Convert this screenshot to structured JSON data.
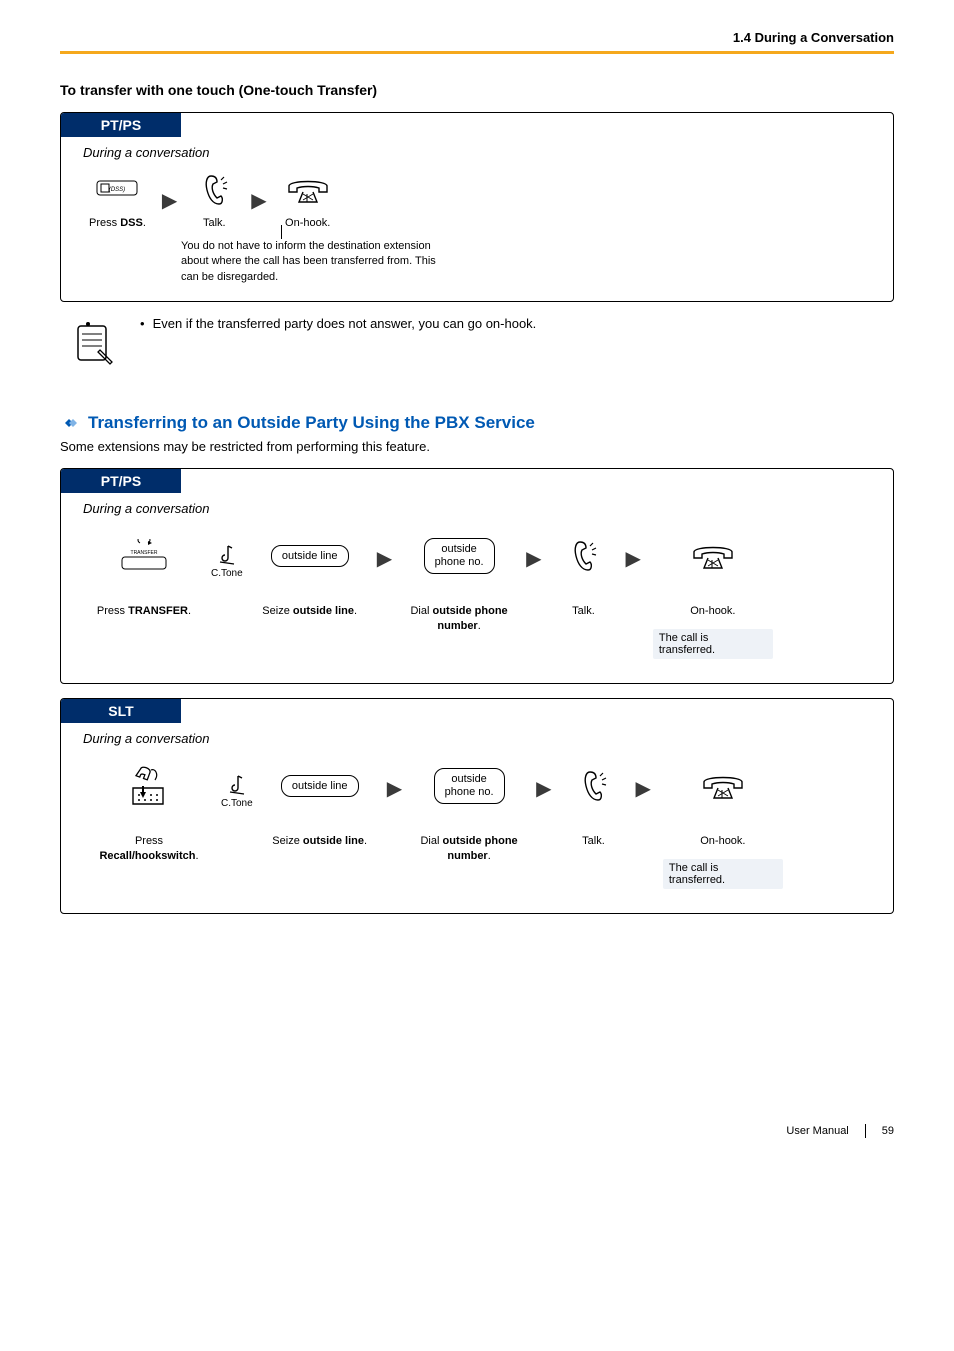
{
  "header": {
    "section": "1.4 During a Conversation"
  },
  "onetouch": {
    "heading": "To transfer with one touch (One-touch Transfer)",
    "panel_label": "PT/PS",
    "context": "During a conversation",
    "step1": "Press <b>DSS</b>.",
    "dss_key": "(DSS)",
    "step2": "Talk.",
    "step3": "On-hook.",
    "callout": "You do not have to inform the destination extension about where the call has been transferred from. This can be disregarded."
  },
  "note": {
    "text": "Even if the transferred party does not answer, you can go on-hook."
  },
  "section2": {
    "title": "Transferring to an Outside Party Using the PBX Service",
    "lead": "Some extensions may be restricted from performing this feature."
  },
  "ptps": {
    "panel_label": "PT/PS",
    "context": "During a conversation",
    "transfer_key": "TRANSFER",
    "ctone": "C.Tone",
    "seize_pill": "outside line",
    "dial_pill_l1": "outside",
    "dial_pill_l2": "phone no.",
    "step1": "Press <b>TRANSFER</b>.",
    "step2": "Seize <b>outside line</b>.",
    "step3": "Dial <b>outside phone number</b>.",
    "step4": "Talk.",
    "step5": "On-hook.",
    "tr_note": "The call is transferred."
  },
  "slt": {
    "panel_label": "SLT",
    "context": "During a conversation",
    "ctone": "C.Tone",
    "seize_pill": "outside line",
    "dial_pill_l1": "outside",
    "dial_pill_l2": "phone no.",
    "step1": "Press <b>Recall/hookswitch</b>.",
    "step2": "Seize <b>outside line</b>.",
    "step3": "Dial <b>outside phone number</b>.",
    "step4": "Talk.",
    "step5": "On-hook.",
    "tr_note": "The call is transferred."
  },
  "footer": {
    "label": "User Manual",
    "page": "59"
  }
}
